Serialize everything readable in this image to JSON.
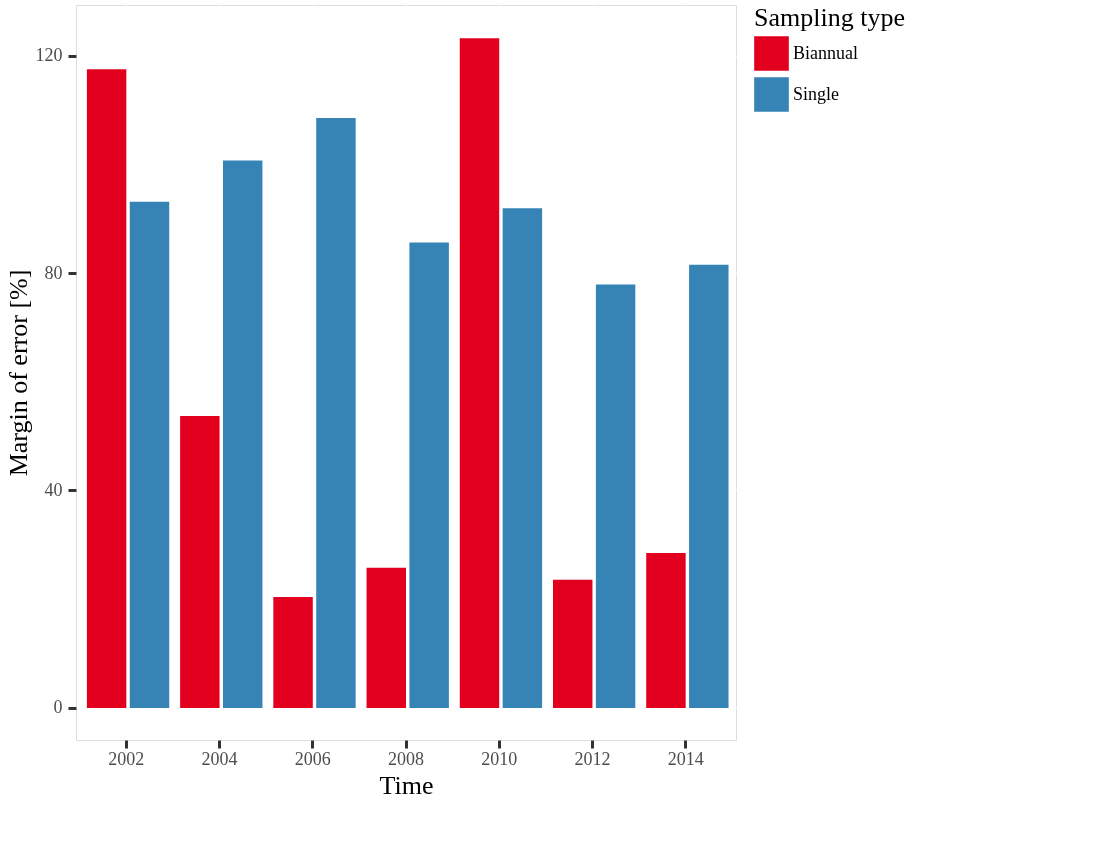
{
  "chart_data": {
    "type": "bar",
    "xlabel": "Time",
    "ylabel": "Margin of error [%]",
    "legend_title": "Sampling type",
    "categories": [
      "2002",
      "2004",
      "2006",
      "2008",
      "2010",
      "2012",
      "2014"
    ],
    "series": [
      {
        "name": "Biannual",
        "color": "#e3001f",
        "values": [
          117.5,
          53.7,
          20.4,
          25.8,
          123.2,
          23.6,
          28.5
        ]
      },
      {
        "name": "Single",
        "color": "#3683b6",
        "values": [
          93.1,
          100.7,
          108.5,
          85.6,
          91.9,
          77.9,
          81.5
        ]
      }
    ],
    "ylim": [
      -5.9,
      129.3
    ],
    "yticks": [
      0,
      40,
      80,
      120
    ],
    "grid": true,
    "legend": "right"
  }
}
